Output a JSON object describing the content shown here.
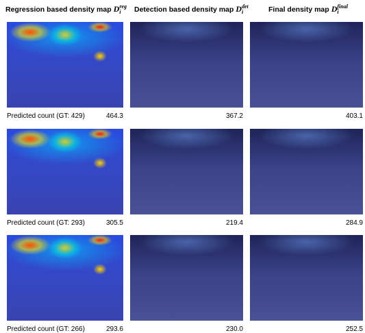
{
  "headers": [
    {
      "text": "Regression based density map",
      "symbol": "D",
      "sub": "i",
      "sup": "reg"
    },
    {
      "text": "Detection based density map",
      "symbol": "D",
      "sub": "i",
      "sup": "det"
    },
    {
      "text": "Final density map",
      "symbol": "D",
      "sub": "i",
      "sup": "final"
    }
  ],
  "rows": [
    {
      "label": "Predicted count (GT: 429)",
      "counts": [
        "464.3",
        "367.2",
        "403.1"
      ]
    },
    {
      "label": "Predicted count (GT: 293)",
      "counts": [
        "305.5",
        "219.4",
        "284.9"
      ]
    },
    {
      "label": "Predicted count (GT: 266)",
      "counts": [
        "293.6",
        "230.0",
        "252.5"
      ]
    }
  ]
}
